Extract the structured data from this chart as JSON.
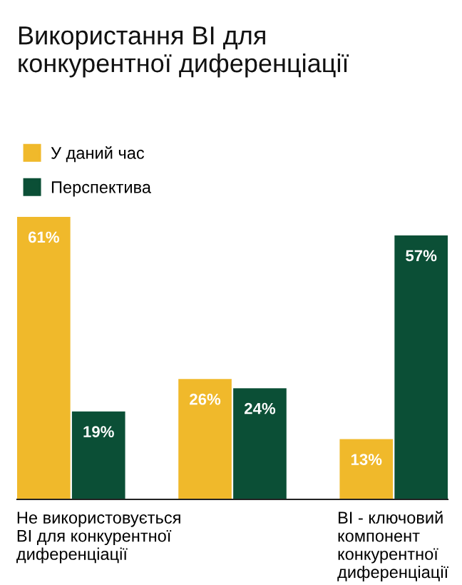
{
  "chart_data": {
    "type": "bar",
    "title": "Використання BI для\nконкурентної диференціації",
    "categories": [
      "Не використовується\nBI для конкурентної\nдиференціації",
      null,
      "BI - ключовий\nкомпонент\nконкурентної\nдиференціації"
    ],
    "series": [
      {
        "name": "У даний час",
        "color": "#f0b92b",
        "values": [
          61,
          26,
          13
        ],
        "value_labels": [
          "61%",
          "26%",
          "13%"
        ]
      },
      {
        "name": "Перспектива",
        "color": "#0b4f36",
        "values": [
          19,
          24,
          57
        ],
        "value_labels": [
          "19%",
          "24%",
          "57%"
        ]
      }
    ],
    "legend": "top left",
    "grid": false,
    "tick_labels": "x"
  }
}
